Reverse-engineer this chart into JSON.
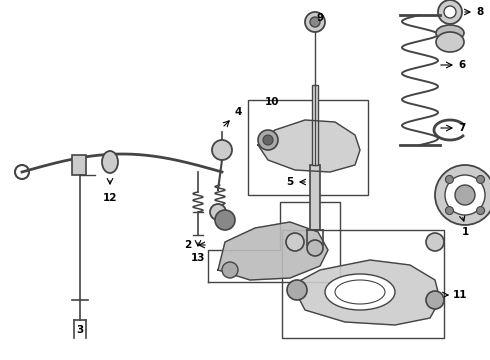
{
  "background_color": "#ffffff",
  "line_color": "#444444",
  "fig_width": 4.9,
  "fig_height": 3.6,
  "dpi": 100,
  "label_fontsize": 7.5
}
